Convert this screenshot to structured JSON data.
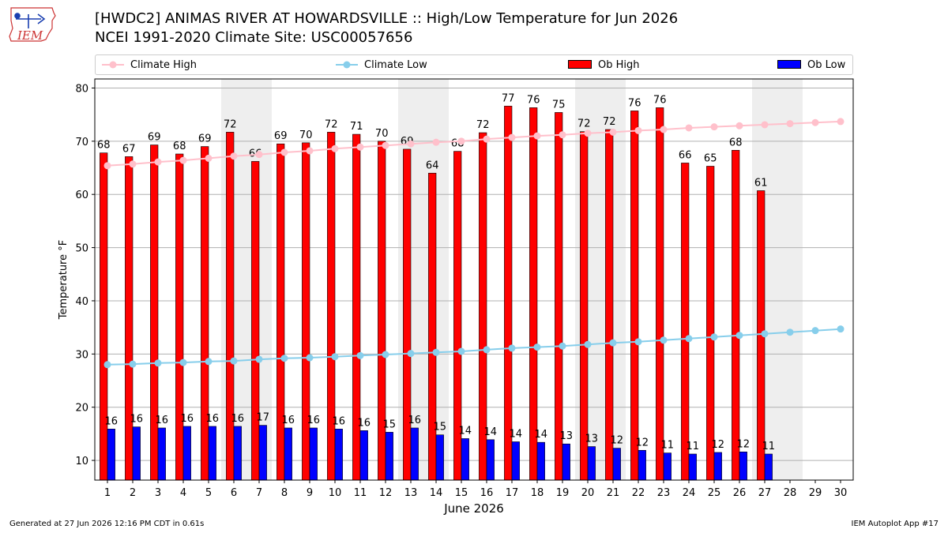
{
  "header": {
    "title_line1": "[HWDC2] ANIMAS RIVER AT HOWARDSVILLE :: High/Low Temperature for Jun 2026",
    "title_line2": "NCEI 1991-2020 Climate Site: USC00057656",
    "logo_text": "IEM"
  },
  "legend": {
    "climate_high": "Climate High",
    "climate_low": "Climate Low",
    "ob_high": "Ob High",
    "ob_low": "Ob Low"
  },
  "footer": {
    "generated": "Generated at 27 Jun 2026 12:16 PM CDT in 0.61s",
    "app": "IEM Autoplot App #17"
  },
  "colors": {
    "ob_high": "#ff0000",
    "ob_low": "#0000ff",
    "climate_high": "#ffc0cb",
    "climate_low": "#87ceeb",
    "weekend_shade": "#eeeeee"
  },
  "chart_data": {
    "type": "bar",
    "xlabel": "June 2026",
    "ylabel": "Temperature °F",
    "ylim": [
      6.3,
      81.7
    ],
    "yticks": [
      10,
      20,
      30,
      40,
      50,
      60,
      70,
      80
    ],
    "grid": "horizontal",
    "legend_position": "top",
    "categories": [
      "1",
      "2",
      "3",
      "4",
      "5",
      "6",
      "7",
      "8",
      "9",
      "10",
      "11",
      "12",
      "13",
      "14",
      "15",
      "16",
      "17",
      "18",
      "19",
      "20",
      "21",
      "22",
      "23",
      "24",
      "25",
      "26",
      "27",
      "28",
      "29",
      "30"
    ],
    "shaded_days": [
      6,
      7,
      13,
      14,
      20,
      21,
      27,
      28
    ],
    "series": [
      {
        "name": "Ob High",
        "kind": "bar",
        "values": [
          68,
          67,
          69,
          68,
          69,
          72,
          66,
          69,
          70,
          72,
          71,
          70,
          69,
          64,
          68,
          72,
          77,
          76,
          75,
          72,
          72,
          76,
          76,
          66,
          65,
          68,
          61,
          null,
          null,
          null
        ],
        "plotted": [
          67.8,
          67.1,
          69.3,
          67.6,
          69.0,
          71.7,
          66.2,
          69.5,
          69.7,
          71.7,
          71.3,
          70.0,
          68.5,
          64.0,
          68.1,
          71.6,
          76.6,
          76.3,
          75.4,
          71.8,
          72.2,
          75.7,
          76.3,
          65.9,
          65.3,
          68.3,
          60.7,
          null,
          null,
          null
        ]
      },
      {
        "name": "Ob Low",
        "kind": "bar",
        "values": [
          16,
          16,
          16,
          16,
          16,
          16,
          17,
          16,
          16,
          16,
          16,
          15,
          16,
          15,
          14,
          14,
          14,
          14,
          13,
          13,
          12,
          12,
          11,
          11,
          12,
          12,
          11,
          null,
          null,
          null
        ],
        "plotted": [
          15.9,
          16.3,
          16.1,
          16.4,
          16.4,
          16.4,
          16.6,
          16.1,
          16.1,
          15.9,
          15.6,
          15.3,
          16.1,
          14.8,
          14.1,
          13.9,
          13.5,
          13.4,
          13.1,
          12.6,
          12.3,
          11.9,
          11.4,
          11.2,
          11.5,
          11.6,
          11.2,
          null,
          null,
          null
        ]
      },
      {
        "name": "Climate High",
        "kind": "line",
        "values": [
          65.4,
          65.7,
          66.1,
          66.4,
          66.8,
          67.2,
          67.5,
          67.9,
          68.2,
          68.6,
          68.9,
          69.2,
          69.5,
          69.8,
          70.0,
          70.4,
          70.7,
          71.0,
          71.2,
          71.5,
          71.7,
          72.0,
          72.2,
          72.5,
          72.7,
          72.9,
          73.1,
          73.3,
          73.5,
          73.7
        ]
      },
      {
        "name": "Climate Low",
        "kind": "line",
        "values": [
          28.0,
          28.1,
          28.3,
          28.4,
          28.6,
          28.7,
          29.0,
          29.2,
          29.3,
          29.5,
          29.7,
          29.9,
          30.1,
          30.3,
          30.5,
          30.8,
          31.1,
          31.3,
          31.5,
          31.8,
          32.1,
          32.3,
          32.6,
          32.9,
          33.2,
          33.5,
          33.8,
          34.1,
          34.4,
          34.7
        ]
      }
    ]
  }
}
